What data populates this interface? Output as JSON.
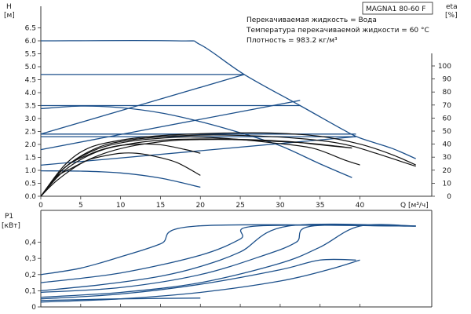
{
  "model_label": "MAGNA1 80-60 F",
  "info_lines": [
    "Перекачиваемая жидкость = Вода",
    "Температура перекачиваемой жидкости = 60 °C",
    "Плотность = 983.2 кг/м³"
  ],
  "colors": {
    "blue": "#1b4f8a",
    "black": "#111111",
    "axis": "#333333"
  },
  "chart_data": [
    {
      "type": "line",
      "panel": "head",
      "y_label": [
        "H",
        "[м]"
      ],
      "y2_label": [
        "eta",
        "[%]"
      ],
      "x_label": "Q [м³/ч]",
      "xlim": [
        0,
        49
      ],
      "ylim": [
        0,
        7.0
      ],
      "y2lim": [
        0,
        100
      ],
      "x_ticks": [
        "0",
        "5",
        "10",
        "15",
        "20",
        "25",
        "30",
        "35",
        "40"
      ],
      "y_ticks": [
        "0.0",
        "0.5",
        "1.0",
        "1.5",
        "2.0",
        "2.5",
        "3.0",
        "3.5",
        "4.0",
        "4.5",
        "5.0",
        "5.5",
        "6.0",
        "6.5"
      ],
      "y2_ticks": [
        "0",
        "10",
        "20",
        "30",
        "40",
        "50",
        "60",
        "70",
        "80",
        "90",
        "100"
      ],
      "grid": false,
      "series": [
        {
          "role": "head-curve",
          "color": "blue",
          "points": [
            [
              0,
              6.0
            ],
            [
              17,
              6.0
            ],
            [
              20,
              5.85
            ],
            [
              25.5,
              4.7
            ],
            [
              32.5,
              3.5
            ],
            [
              38,
              2.55
            ],
            [
              40,
              2.25
            ],
            [
              44,
              1.85
            ],
            [
              47,
              1.45
            ]
          ]
        },
        {
          "role": "head-curve",
          "color": "blue",
          "points": [
            [
              0,
              4.7
            ],
            [
              25.5,
              4.7
            ]
          ]
        },
        {
          "role": "head-curve",
          "color": "blue",
          "points": [
            [
              0,
              3.5
            ],
            [
              5,
              3.5
            ],
            [
              32.5,
              3.5
            ]
          ]
        },
        {
          "role": "head-curve",
          "color": "blue",
          "points": [
            [
              0,
              3.38
            ],
            [
              5,
              3.48
            ],
            [
              10,
              3.42
            ],
            [
              15,
              3.22
            ],
            [
              20,
              2.88
            ],
            [
              25,
              2.45
            ],
            [
              30,
              1.95
            ],
            [
              35,
              1.25
            ],
            [
              39,
              0.72
            ]
          ]
        },
        {
          "role": "head-curve",
          "color": "blue",
          "points": [
            [
              0,
              2.4
            ],
            [
              39.5,
              2.4
            ]
          ]
        },
        {
          "role": "head-curve",
          "color": "blue",
          "points": [
            [
              0,
              2.3
            ],
            [
              39.5,
              2.3
            ]
          ]
        },
        {
          "role": "head-curve",
          "color": "blue",
          "points": [
            [
              0,
              0.98
            ],
            [
              5,
              0.97
            ],
            [
              10,
              0.9
            ],
            [
              15,
              0.7
            ],
            [
              20,
              0.35
            ]
          ]
        },
        {
          "role": "system-curve",
          "color": "blue",
          "points": [
            [
              0,
              2.4
            ],
            [
              25.5,
              4.7
            ]
          ]
        },
        {
          "role": "system-curve",
          "color": "blue",
          "points": [
            [
              0,
              1.8
            ],
            [
              32.5,
              3.7
            ]
          ]
        },
        {
          "role": "system-curve",
          "color": "blue",
          "points": [
            [
              0,
              1.2
            ],
            [
              39.5,
              2.3
            ]
          ]
        },
        {
          "role": "efficiency",
          "color": "black",
          "axis": "eta",
          "points": [
            [
              0,
              0
            ],
            [
              2,
              12
            ],
            [
              5,
              25
            ],
            [
              8,
              33
            ],
            [
              11,
              38
            ],
            [
              14,
              41
            ],
            [
              17,
              43
            ],
            [
              20,
              43.5
            ],
            [
              24,
              43.5
            ],
            [
              28,
              42.5
            ],
            [
              33,
              41
            ],
            [
              37,
              38.5
            ],
            [
              39,
              37
            ]
          ]
        },
        {
          "role": "efficiency",
          "color": "black",
          "axis": "eta",
          "points": [
            [
              0,
              0
            ],
            [
              3,
              20
            ],
            [
              7,
              34
            ],
            [
              11,
              40
            ],
            [
              15,
              43
            ],
            [
              20,
              44
            ],
            [
              26,
              43.5
            ],
            [
              31,
              42
            ],
            [
              35,
              39.5
            ],
            [
              39,
              37
            ]
          ]
        },
        {
          "role": "efficiency",
          "color": "black",
          "axis": "eta",
          "points": [
            [
              0,
              0
            ],
            [
              3,
              22
            ],
            [
              7,
              37
            ],
            [
              11,
              43
            ],
            [
              16,
              46
            ],
            [
              21,
              47
            ],
            [
              26,
              46.5
            ],
            [
              31,
              45
            ],
            [
              36,
              42
            ],
            [
              39,
              38.5
            ],
            [
              42,
              33
            ],
            [
              47,
              23
            ]
          ]
        },
        {
          "role": "efficiency",
          "color": "black",
          "axis": "eta",
          "points": [
            [
              0,
              0
            ],
            [
              3,
              22
            ],
            [
              7,
              36
            ],
            [
              11,
              42
            ],
            [
              15,
              44.5
            ],
            [
              19,
              45.5
            ],
            [
              24,
              44
            ],
            [
              29,
              41
            ],
            [
              34,
              37
            ],
            [
              38,
              28
            ],
            [
              40,
              24
            ]
          ]
        },
        {
          "role": "efficiency",
          "color": "black",
          "axis": "eta",
          "points": [
            [
              0,
              0
            ],
            [
              3,
              22
            ],
            [
              6,
              32
            ],
            [
              9,
              38
            ],
            [
              12,
              40
            ],
            [
              15,
              39.5
            ],
            [
              18,
              36
            ],
            [
              20,
              33
            ]
          ]
        },
        {
          "role": "efficiency",
          "color": "black",
          "axis": "eta",
          "points": [
            [
              0,
              0
            ],
            [
              3,
              24
            ],
            [
              6,
              37
            ],
            [
              10,
              43
            ],
            [
              14,
              46
            ],
            [
              18,
              47.5
            ],
            [
              23,
              48.5
            ],
            [
              29,
              48.5
            ],
            [
              35,
              46
            ],
            [
              40,
              40
            ],
            [
              44,
              32
            ],
            [
              47,
              24
            ]
          ]
        },
        {
          "role": "efficiency",
          "color": "black",
          "axis": "eta",
          "points": [
            [
              0,
              0
            ],
            [
              2,
              15
            ],
            [
              4,
              22
            ],
            [
              6,
              28
            ],
            [
              8,
              31
            ],
            [
              10,
              33
            ],
            [
              12,
              33
            ],
            [
              14,
              31
            ],
            [
              17,
              26
            ],
            [
              20,
              16
            ]
          ]
        }
      ]
    },
    {
      "type": "line",
      "panel": "power",
      "y_label": [
        "P1",
        "[кВт]"
      ],
      "xlim": [
        0,
        49
      ],
      "ylim": [
        0,
        0.5
      ],
      "y_ticks": [
        "0",
        "0,1",
        "0,2",
        "0,3",
        "0,4"
      ],
      "grid": false,
      "series": [
        {
          "color": "blue",
          "points": [
            [
              0,
              0.2
            ],
            [
              5,
              0.24
            ],
            [
              10,
              0.31
            ],
            [
              15,
              0.39
            ],
            [
              19.5,
              0.5
            ],
            [
              47,
              0.5
            ]
          ]
        },
        {
          "color": "blue",
          "points": [
            [
              0,
              0.15
            ],
            [
              10,
              0.21
            ],
            [
              20,
              0.32
            ],
            [
              25,
              0.42
            ],
            [
              27,
              0.5
            ],
            [
              47,
              0.5
            ]
          ]
        },
        {
          "color": "blue",
          "points": [
            [
              0,
              0.1
            ],
            [
              8,
              0.14
            ],
            [
              15,
              0.19
            ],
            [
              20,
              0.25
            ],
            [
              25,
              0.34
            ],
            [
              31,
              0.5
            ],
            [
              47,
              0.5
            ]
          ]
        },
        {
          "color": "blue",
          "points": [
            [
              0,
              0.09
            ],
            [
              10,
              0.12
            ],
            [
              20,
              0.2
            ],
            [
              28,
              0.32
            ],
            [
              32,
              0.4
            ],
            [
              34,
              0.5
            ],
            [
              47,
              0.5
            ]
          ]
        },
        {
          "color": "blue",
          "points": [
            [
              0,
              0.06
            ],
            [
              10,
              0.09
            ],
            [
              20,
              0.15
            ],
            [
              30,
              0.27
            ],
            [
              35,
              0.37
            ],
            [
              40,
              0.5
            ],
            [
              47,
              0.5
            ]
          ]
        },
        {
          "color": "blue",
          "points": [
            [
              0,
              0.05
            ],
            [
              10,
              0.08
            ],
            [
              20,
              0.14
            ],
            [
              30,
              0.23
            ],
            [
              35,
              0.29
            ],
            [
              39.5,
              0.29
            ]
          ]
        },
        {
          "color": "blue",
          "points": [
            [
              0,
              0.03
            ],
            [
              10,
              0.05
            ],
            [
              20,
              0.09
            ],
            [
              30,
              0.16
            ],
            [
              36,
              0.23
            ],
            [
              40,
              0.29
            ]
          ]
        },
        {
          "color": "blue",
          "points": [
            [
              0,
              0.04
            ],
            [
              5,
              0.045
            ],
            [
              10,
              0.05
            ],
            [
              20,
              0.055
            ]
          ]
        }
      ]
    }
  ]
}
